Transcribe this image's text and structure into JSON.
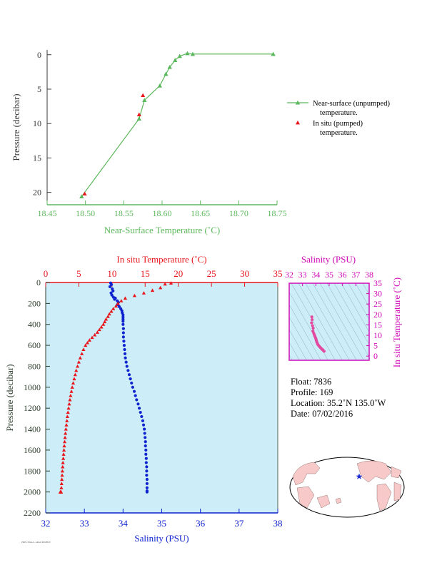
{
  "chart_data": [
    {
      "type": "line",
      "xlabel": "Near-Surface Temperature (˚C)",
      "ylabel": "Pressure (decibar)",
      "xlim": [
        18.45,
        18.75
      ],
      "ylim": [
        21.8,
        -0.7
      ],
      "xticks": [
        "18.45",
        "18.50",
        "18.55",
        "18.60",
        "18.65",
        "18.70",
        "18.75"
      ],
      "yticks": [
        "0",
        "5",
        "10",
        "15",
        "20"
      ],
      "series": [
        {
          "name": "Near-surface (unpumped) temperature.",
          "color": "#5cb85c",
          "marker": "triangle",
          "line": true,
          "x": [
            18.495,
            18.57,
            18.577,
            18.597,
            18.605,
            18.61,
            18.617,
            18.623,
            18.633,
            18.64,
            18.745
          ],
          "y": [
            20.6,
            9.3,
            6.6,
            4.5,
            2.8,
            1.8,
            0.8,
            0.2,
            -0.2,
            -0.1,
            -0.1
          ]
        },
        {
          "name": "In situ (pumped) temperature.",
          "color": "#e8151b",
          "marker": "triangle",
          "line": false,
          "x": [
            18.499,
            18.57,
            18.575
          ],
          "y": [
            20.2,
            8.7,
            5.9
          ]
        }
      ],
      "legend": "right"
    },
    {
      "type": "scatter",
      "xlabel": "Salinity (PSU)",
      "x2label": "In situ Temperature (˚C)",
      "ylabel": "Pressure (decibar)",
      "xlim": [
        32,
        38
      ],
      "x2lim": [
        0,
        35
      ],
      "ylim": [
        2200,
        0
      ],
      "xticks": [
        "32",
        "33",
        "34",
        "35",
        "36",
        "37",
        "38"
      ],
      "x2ticks": [
        "0",
        "5",
        "10",
        "15",
        "20",
        "25",
        "30",
        "35"
      ],
      "yticks": [
        "0",
        "200",
        "400",
        "600",
        "800",
        "1000",
        "1200",
        "1400",
        "1600",
        "1800",
        "2000",
        "2200"
      ],
      "series": [
        {
          "axis": "top",
          "color": "#e8151b",
          "marker": "triangle",
          "x": [
            18.9,
            18.0,
            17.3,
            16.1,
            14.8,
            13.4,
            12.0,
            11.4,
            10.9,
            10.6,
            10.2,
            9.9,
            9.6,
            9.4,
            9.1,
            8.9,
            8.7,
            8.4,
            8.1,
            7.8,
            7.4,
            7.0,
            6.6,
            6.3,
            6.0,
            5.7,
            5.45,
            5.2,
            5.0,
            4.8,
            4.6,
            4.45,
            4.3,
            4.15,
            4.0,
            3.88,
            3.76,
            3.65,
            3.55,
            3.45,
            3.36,
            3.27,
            3.2,
            3.12,
            3.05,
            2.98,
            2.92,
            2.86,
            2.8,
            2.75,
            2.7,
            2.65,
            2.6,
            2.56,
            2.52,
            2.48,
            2.44,
            2.4,
            2.36,
            2.32,
            2.28,
            2.24,
            2.2
          ],
          "y": [
            5,
            15,
            50,
            75,
            100,
            125,
            150,
            175,
            200,
            225,
            250,
            275,
            300,
            325,
            350,
            375,
            400,
            425,
            450,
            475,
            500,
            525,
            550,
            575,
            600,
            640,
            680,
            720,
            760,
            800,
            840,
            880,
            920,
            960,
            1000,
            1040,
            1080,
            1120,
            1160,
            1200,
            1240,
            1280,
            1320,
            1360,
            1400,
            1440,
            1480,
            1520,
            1560,
            1600,
            1640,
            1680,
            1720,
            1760,
            1800,
            1840,
            1880,
            1920,
            1960,
            2000,
            2000,
            2000,
            2000
          ]
        },
        {
          "axis": "bottom",
          "color": "#0f23cf",
          "marker": "dot",
          "x": [
            33.68,
            33.7,
            33.66,
            33.72,
            33.74,
            33.69,
            33.71,
            33.75,
            33.8,
            33.78,
            33.85,
            33.88,
            33.86,
            33.9,
            33.94,
            33.97,
            33.98,
            34.0,
            34.0,
            34.0,
            34.0,
            34.0,
            34.01,
            34.01,
            34.01,
            34.02,
            34.03,
            34.04,
            34.05,
            34.06,
            34.08,
            34.1,
            34.13,
            34.16,
            34.19,
            34.22,
            34.25,
            34.29,
            34.32,
            34.35,
            34.39,
            34.42,
            34.45,
            34.48,
            34.51,
            34.53,
            34.55,
            34.56,
            34.57,
            34.58,
            34.58,
            34.59,
            34.59,
            34.6,
            34.6,
            34.61,
            34.61,
            34.61,
            34.62,
            34.62,
            34.62,
            34.62,
            34.62
          ],
          "y": [
            5,
            20,
            40,
            60,
            80,
            100,
            120,
            140,
            150,
            160,
            175,
            190,
            210,
            230,
            250,
            270,
            290,
            310,
            330,
            350,
            370,
            400,
            440,
            480,
            520,
            560,
            600,
            640,
            680,
            720,
            760,
            800,
            840,
            880,
            920,
            960,
            1000,
            1040,
            1080,
            1120,
            1160,
            1200,
            1240,
            1280,
            1320,
            1360,
            1400,
            1440,
            1480,
            1520,
            1560,
            1600,
            1640,
            1680,
            1720,
            1760,
            1800,
            1840,
            1880,
            1920,
            1960,
            1990,
            2000
          ]
        }
      ],
      "plot_bg": "#cdeef9"
    },
    {
      "type": "scatter",
      "xlabel": "Salinity (PSU)",
      "ylabel": "In situ Temperature (˚C)",
      "xlim": [
        32,
        38
      ],
      "ylim": [
        -2,
        35
      ],
      "xticks": [
        "32",
        "33",
        "34",
        "35",
        "36",
        "37",
        "38"
      ],
      "yticks": [
        "0",
        "5",
        "10",
        "15",
        "20",
        "25",
        "30",
        "35"
      ],
      "series": [
        {
          "color": "#e24aa0",
          "marker": "dot",
          "x": [
            33.7,
            33.72,
            33.68,
            33.75,
            33.8,
            33.78,
            33.84,
            33.88,
            33.92,
            33.96,
            34.0,
            34.02,
            34.05,
            34.08,
            34.12,
            34.16,
            34.22,
            34.28,
            34.34,
            34.4,
            34.46,
            34.52,
            34.58,
            34.62
          ],
          "y": [
            18.8,
            17.5,
            16.0,
            14.6,
            13.4,
            12.0,
            11.0,
            10.3,
            9.6,
            9.0,
            8.4,
            7.8,
            7.2,
            6.6,
            6.0,
            5.5,
            5.0,
            4.5,
            4.1,
            3.7,
            3.3,
            3.0,
            2.6,
            2.3
          ]
        }
      ],
      "axis_color": "#d10bb8"
    }
  ],
  "info": {
    "float": "Float:  7836",
    "profile": "Profile:  169",
    "location": "Location:  35.2˚N  135.0˚W",
    "date": "Date:  07/02/2016"
  },
  "map": {
    "land_color": "#f7c9c9",
    "ocean_color": "#ffffff",
    "marker": "star",
    "marker_color": "#1a2bd1"
  },
  "footer": "PMEL/NOAA - ARGO PROFILE"
}
